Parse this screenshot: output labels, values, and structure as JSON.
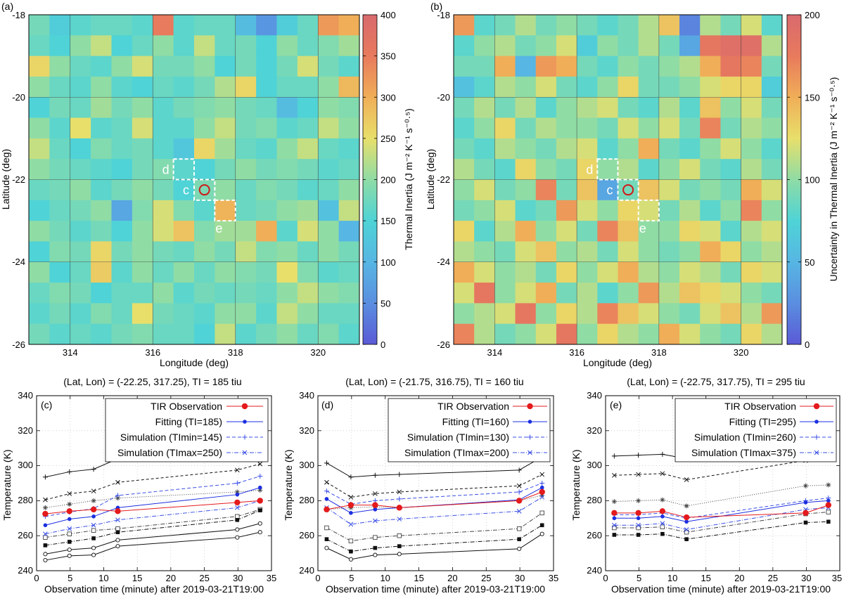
{
  "chart_data": [
    {
      "type": "heatmap",
      "panel_label": "(a)",
      "xlabel": "Longitude (deg)",
      "ylabel": "Latitude (deg)",
      "xlim": [
        313,
        321
      ],
      "ylim": [
        -26,
        -18
      ],
      "xticks": [
        "314",
        "316",
        "318",
        "320"
      ],
      "yticks": [
        "-18",
        "-20",
        "-22",
        "-24",
        "-26"
      ],
      "colorbar": {
        "label": "Thermal Inertia (J m⁻² K⁻¹ s⁻⁰·⁵)",
        "min": 0,
        "max": 400,
        "ticks": [
          "0",
          "50",
          "100",
          "150",
          "200",
          "250",
          "300",
          "350",
          "400"
        ]
      },
      "boxes": [
        {
          "label": "d",
          "lat": -21.75,
          "lon": 316.75
        },
        {
          "label": "c",
          "lat": -22.25,
          "lon": 317.25
        },
        {
          "label": "e",
          "lat": -22.75,
          "lon": 317.75
        }
      ],
      "marker": {
        "lat": -22.25,
        "lon": 317.25
      },
      "values": [
        [
          180,
          140,
          160,
          170,
          170,
          160,
          350,
          160,
          170,
          170,
          110,
          60,
          140,
          170,
          320,
          300
        ],
        [
          170,
          150,
          200,
          230,
          150,
          170,
          200,
          160,
          230,
          170,
          180,
          150,
          200,
          170,
          190,
          210
        ],
        [
          260,
          200,
          170,
          160,
          200,
          240,
          180,
          180,
          200,
          150,
          180,
          150,
          180,
          240,
          180,
          160
        ],
        [
          200,
          170,
          160,
          200,
          160,
          150,
          170,
          160,
          180,
          220,
          260,
          150,
          170,
          170,
          200,
          290
        ],
        [
          150,
          180,
          170,
          210,
          180,
          200,
          160,
          180,
          190,
          200,
          180,
          170,
          110,
          150,
          200,
          190
        ],
        [
          200,
          160,
          250,
          160,
          170,
          240,
          160,
          160,
          200,
          230,
          180,
          190,
          160,
          170,
          230,
          200
        ],
        [
          230,
          170,
          150,
          190,
          170,
          180,
          160,
          130,
          260,
          210,
          170,
          160,
          200,
          230,
          170,
          160
        ],
        [
          200,
          180,
          170,
          160,
          150,
          180,
          190,
          160,
          150,
          180,
          200,
          180,
          190,
          180,
          160,
          170
        ],
        [
          170,
          180,
          200,
          160,
          180,
          200,
          180,
          150,
          185,
          200,
          170,
          190,
          180,
          160,
          170,
          200
        ],
        [
          150,
          170,
          180,
          200,
          80,
          190,
          240,
          190,
          160,
          295,
          170,
          180,
          200,
          210,
          120,
          230
        ],
        [
          200,
          180,
          160,
          180,
          150,
          200,
          240,
          280,
          190,
          210,
          210,
          300,
          160,
          240,
          200,
          100
        ],
        [
          150,
          190,
          180,
          260,
          180,
          200,
          180,
          170,
          200,
          180,
          230,
          190,
          200,
          170,
          200,
          180
        ],
        [
          200,
          150,
          170,
          270,
          160,
          200,
          170,
          200,
          170,
          200,
          190,
          180,
          250,
          190,
          160,
          170
        ],
        [
          170,
          190,
          180,
          150,
          170,
          170,
          200,
          160,
          180,
          170,
          180,
          170,
          200,
          230,
          200,
          190
        ],
        [
          160,
          180,
          160,
          190,
          170,
          250,
          180,
          170,
          160,
          200,
          200,
          160,
          230,
          200,
          170,
          170
        ],
        [
          180,
          160,
          170,
          160,
          180,
          190,
          170,
          170,
          150,
          230,
          160,
          180,
          200,
          170,
          190,
          160
        ]
      ]
    },
    {
      "type": "heatmap",
      "panel_label": "(b)",
      "xlabel": "Longitude (deg)",
      "ylabel": "Latitude (deg)",
      "xlim": [
        313,
        321
      ],
      "ylim": [
        -26,
        -18
      ],
      "xticks": [
        "314",
        "316",
        "318",
        "320"
      ],
      "yticks": [
        "-18",
        "-20",
        "-22",
        "-24",
        "-26"
      ],
      "colorbar": {
        "label": "Uncertainty in Thermal Inertia (J m⁻² K⁻¹ s⁻⁰·⁵)",
        "min": 0,
        "max": 200,
        "ticks": [
          "0",
          "50",
          "100",
          "150",
          "200"
        ]
      },
      "boxes": [
        {
          "label": "d",
          "lat": -21.75,
          "lon": 316.75
        },
        {
          "label": "c",
          "lat": -22.25,
          "lon": 317.25
        },
        {
          "label": "e",
          "lat": -22.75,
          "lon": 317.75
        }
      ],
      "marker": {
        "lat": -22.25,
        "lon": 317.25
      },
      "values": [
        [
          160,
          80,
          90,
          110,
          90,
          100,
          90,
          80,
          90,
          110,
          140,
          20,
          110,
          90,
          120,
          80
        ],
        [
          80,
          100,
          110,
          90,
          100,
          120,
          70,
          100,
          90,
          110,
          90,
          40,
          180,
          190,
          190,
          110
        ],
        [
          90,
          90,
          150,
          50,
          160,
          150,
          90,
          80,
          100,
          90,
          100,
          110,
          150,
          180,
          170,
          90
        ],
        [
          60,
          80,
          110,
          100,
          120,
          90,
          80,
          100,
          130,
          90,
          90,
          100,
          120,
          130,
          130,
          70
        ],
        [
          90,
          110,
          90,
          110,
          80,
          100,
          110,
          120,
          90,
          80,
          110,
          80,
          140,
          100,
          120,
          90
        ],
        [
          80,
          100,
          130,
          90,
          110,
          100,
          100,
          90,
          120,
          100,
          120,
          90,
          170,
          90,
          110,
          100
        ],
        [
          90,
          80,
          110,
          100,
          90,
          110,
          120,
          80,
          100,
          150,
          90,
          80,
          100,
          120,
          100,
          80
        ],
        [
          110,
          90,
          80,
          130,
          100,
          90,
          130,
          100,
          110,
          80,
          100,
          120,
          90,
          80,
          110,
          90
        ],
        [
          100,
          120,
          90,
          100,
          170,
          90,
          140,
          40,
          90,
          140,
          120,
          90,
          100,
          90,
          150,
          120
        ],
        [
          90,
          100,
          120,
          80,
          90,
          160,
          120,
          100,
          130,
          120,
          90,
          110,
          80,
          100,
          170,
          100
        ],
        [
          130,
          80,
          110,
          150,
          100,
          120,
          90,
          170,
          140,
          100,
          100,
          130,
          120,
          80,
          110,
          120
        ],
        [
          110,
          100,
          90,
          120,
          140,
          100,
          110,
          90,
          120,
          100,
          90,
          100,
          150,
          130,
          100,
          110
        ],
        [
          150,
          120,
          100,
          110,
          90,
          130,
          100,
          120,
          150,
          110,
          100,
          120,
          110,
          90,
          130,
          120
        ],
        [
          120,
          180,
          100,
          120,
          150,
          90,
          110,
          80,
          100,
          160,
          110,
          140,
          130,
          120,
          100,
          90
        ],
        [
          100,
          110,
          120,
          180,
          100,
          130,
          110,
          170,
          140,
          120,
          100,
          90,
          120,
          140,
          110,
          160
        ],
        [
          170,
          110,
          90,
          100,
          120,
          180,
          100,
          130,
          110,
          100,
          150,
          120,
          100,
          90,
          130,
          110
        ]
      ]
    },
    {
      "type": "line",
      "panel_label": "(c)",
      "title": "(Lat, Lon) = (-22.25, 317.25), TI = 185 tiu",
      "xlabel": "Observation time (minute) after 2019-03-21T19:00",
      "ylabel": "Temperature (K)",
      "xlim": [
        0,
        35
      ],
      "ylim": [
        240,
        340
      ],
      "xticks": [
        "0",
        "5",
        "10",
        "15",
        "20",
        "25",
        "30",
        "35"
      ],
      "yticks": [
        "240",
        "260",
        "280",
        "300",
        "320",
        "340"
      ],
      "x": [
        1.3,
        4.9,
        8.5,
        12.1,
        29.9,
        33.3
      ],
      "legend": [
        "TIR Observation",
        "Fitting (TI=185)",
        "Simulation (TImin=145)",
        "Simulation (TImax=250)"
      ],
      "series": [
        {
          "name": "TIR Observation",
          "style": "obs",
          "values": [
            272.5,
            274,
            275,
            274,
            279,
            280
          ]
        },
        {
          "name": "Fitting (TI=185)",
          "style": "fit",
          "values": [
            266,
            269.5,
            271,
            276,
            283.5,
            287.5
          ]
        },
        {
          "name": "Simulation (TImin=145)",
          "style": "simmin",
          "values": [
            271,
            273.5,
            275.5,
            283,
            290,
            294
          ]
        },
        {
          "name": "Simulation (TImax=250)",
          "style": "simmax",
          "values": [
            261,
            264,
            266,
            269,
            276,
            280
          ]
        },
        {
          "name": "grid-1",
          "style": "g1",
          "values": [
            293.5,
            296.5,
            298,
            304,
            308,
            312
          ]
        },
        {
          "name": "grid-2",
          "style": "g2",
          "values": [
            280.5,
            284,
            285.5,
            290.5,
            297.5,
            301
          ]
        },
        {
          "name": "grid-3",
          "style": "g3",
          "values": [
            276,
            278,
            280,
            281.5,
            285,
            286
          ]
        },
        {
          "name": "grid-4",
          "style": "g4",
          "values": [
            259,
            261,
            263,
            264,
            271,
            275
          ]
        },
        {
          "name": "grid-5",
          "style": "g5",
          "values": [
            254.5,
            256.5,
            258.5,
            262,
            269,
            274.5
          ]
        },
        {
          "name": "grid-6",
          "style": "g6",
          "values": [
            249.5,
            252,
            253,
            257.5,
            263.5,
            267
          ]
        },
        {
          "name": "grid-7",
          "style": "g7",
          "values": [
            246,
            248.5,
            249,
            254,
            259,
            262
          ]
        }
      ]
    },
    {
      "type": "line",
      "panel_label": "(d)",
      "title": "(Lat, Lon) = (-21.75, 316.75), TI = 160 tiu",
      "xlabel": "Observation time (minute) after 2019-03-21T19:00",
      "ylabel": "Temperature (K)",
      "xlim": [
        0,
        35
      ],
      "ylim": [
        240,
        340
      ],
      "xticks": [
        "0",
        "5",
        "10",
        "15",
        "20",
        "25",
        "30",
        "35"
      ],
      "yticks": [
        "240",
        "260",
        "280",
        "300",
        "320",
        "340"
      ],
      "x": [
        1.3,
        4.9,
        8.5,
        12.1,
        29.9,
        33.3
      ],
      "legend": [
        "TIR Observation",
        "Fitting (TI=160)",
        "Simulation (TImin=130)",
        "Simulation (TImax=200)"
      ],
      "series": [
        {
          "name": "TIR Observation",
          "style": "obs",
          "values": [
            275,
            277.5,
            277.5,
            276,
            280,
            285
          ]
        },
        {
          "name": "Fitting (TI=160)",
          "style": "fit",
          "values": [
            281,
            273,
            275,
            276,
            280.5,
            287.5
          ]
        },
        {
          "name": "Simulation (TImin=130)",
          "style": "simmin",
          "values": [
            285.5,
            278,
            280,
            281,
            285,
            290
          ]
        },
        {
          "name": "Simulation (TImax=200)",
          "style": "simmax",
          "values": [
            276,
            266.5,
            268.5,
            269.5,
            274,
            282
          ]
        },
        {
          "name": "grid-1",
          "style": "g1",
          "values": [
            301.5,
            293.5,
            294.5,
            295,
            297.5,
            305
          ]
        },
        {
          "name": "grid-2",
          "style": "g2",
          "values": [
            290.5,
            282,
            284,
            285,
            288.5,
            295
          ]
        },
        {
          "name": "grid-3",
          "style": "g3",
          "values": [
            275,
            276,
            276.5,
            276,
            280,
            283
          ]
        },
        {
          "name": "grid-4",
          "style": "g4",
          "values": [
            264.5,
            257,
            259,
            260,
            264,
            273
          ]
        },
        {
          "name": "grid-5",
          "style": "g5",
          "values": [
            258,
            251,
            253,
            254,
            258,
            266
          ]
        },
        {
          "name": "grid-6",
          "style": "g6",
          "values": [
            253,
            246.5,
            249,
            249.5,
            252.5,
            261
          ]
        }
      ]
    },
    {
      "type": "line",
      "panel_label": "(e)",
      "title": "(Lat, Lon) = (-22.75, 317.75), TI = 295 tiu",
      "xlabel": "Observation time (minute) after 2019-03-21T19:00",
      "ylabel": "Temperature (K)",
      "xlim": [
        0,
        35
      ],
      "ylim": [
        240,
        340
      ],
      "xticks": [
        "0",
        "5",
        "10",
        "15",
        "20",
        "25",
        "30",
        "35"
      ],
      "yticks": [
        "240",
        "260",
        "280",
        "300",
        "320",
        "340"
      ],
      "x": [
        1.3,
        4.9,
        8.5,
        12.1,
        29.9,
        33.3
      ],
      "legend": [
        "TIR Observation",
        "Fitting (TI=295)",
        "Simulation (TImin=260)",
        "Simulation (TImax=375)"
      ],
      "series": [
        {
          "name": "TIR Observation",
          "style": "obs",
          "values": [
            273,
            273,
            274,
            270.5,
            273,
            277.5
          ]
        },
        {
          "name": "Fitting (TI=295)",
          "style": "fit",
          "values": [
            270,
            270,
            271,
            268,
            279,
            280
          ]
        },
        {
          "name": "Simulation (TImin=260)",
          "style": "simmin",
          "values": [
            272,
            272,
            273,
            270,
            280,
            281.5
          ]
        },
        {
          "name": "Simulation (TImax=375)",
          "style": "simmax",
          "values": [
            266,
            266,
            267,
            263.5,
            275,
            276
          ]
        },
        {
          "name": "grid-1",
          "style": "g1",
          "values": [
            305.5,
            306,
            306.5,
            304,
            315,
            316
          ]
        },
        {
          "name": "grid-2",
          "style": "g2",
          "values": [
            294.5,
            295,
            295.5,
            292,
            303,
            304
          ]
        },
        {
          "name": "grid-3",
          "style": "g3",
          "values": [
            279.5,
            280,
            280.5,
            277,
            288.5,
            289
          ]
        },
        {
          "name": "grid-4",
          "style": "g4",
          "values": [
            264.5,
            264.5,
            265,
            262,
            272.5,
            273.5
          ]
        },
        {
          "name": "grid-5",
          "style": "g5",
          "values": [
            260.5,
            260.5,
            261,
            258,
            267.5,
            268
          ]
        }
      ]
    }
  ]
}
